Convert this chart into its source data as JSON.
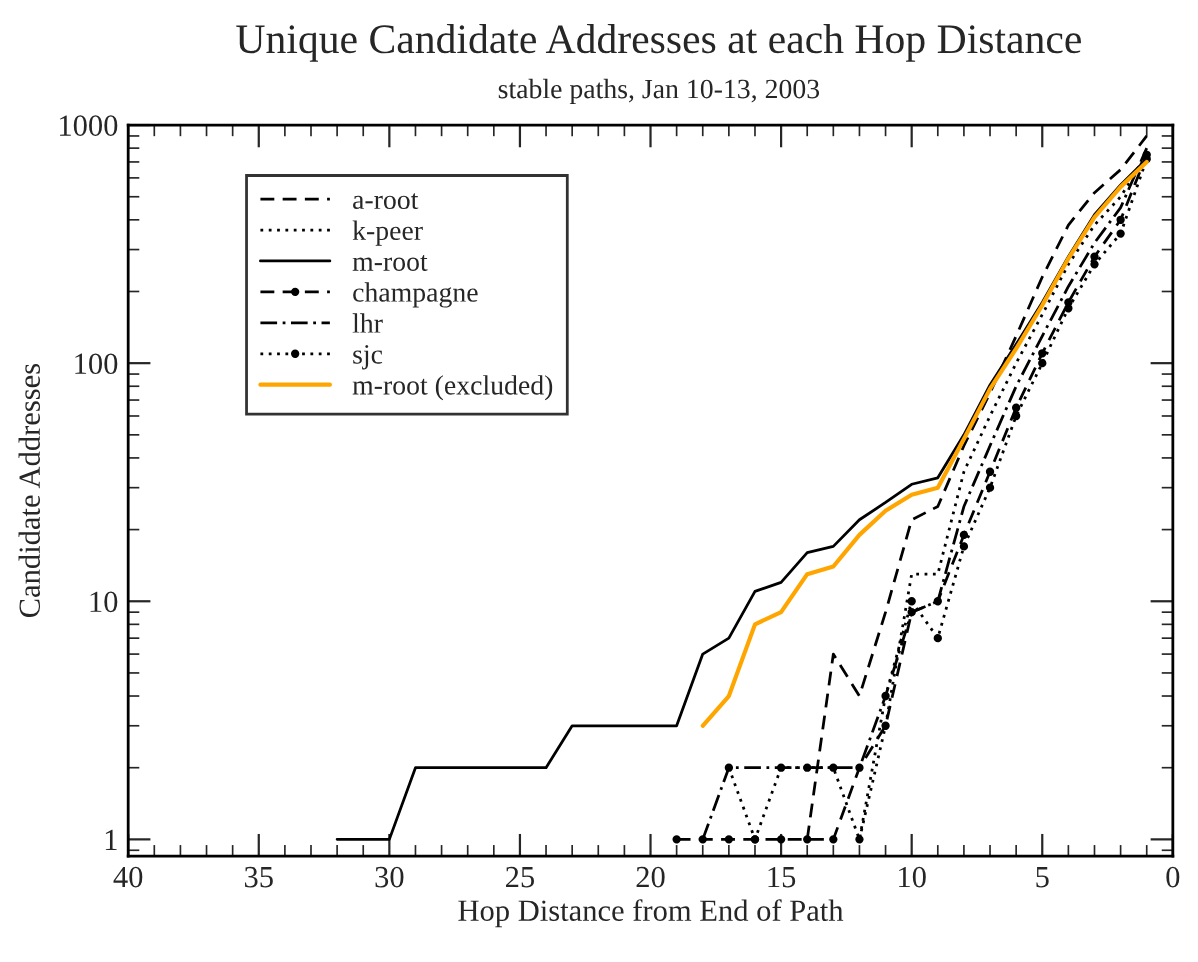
{
  "chart_data": {
    "type": "line",
    "title": "Unique Candidate Addresses at each Hop Distance",
    "subtitle": "stable paths, Jan 10-13, 2003",
    "xlabel": "Hop Distance from End of Path",
    "ylabel": "Candidate Addresses",
    "log": "y",
    "xlim": [
      40,
      0
    ],
    "xticks": [
      40,
      35,
      30,
      25,
      20,
      15,
      10,
      5,
      0
    ],
    "ylim": [
      0.85,
      1000
    ],
    "yticks": [
      1,
      10,
      100,
      1000
    ],
    "grid": false,
    "legend": "top left",
    "series": [
      {
        "name": "a-root",
        "color": "#000000",
        "line_style": "dashed",
        "marker": "none",
        "x": [
          14,
          13,
          12,
          11,
          10,
          9,
          8,
          7,
          6,
          5,
          4,
          3,
          2,
          1
        ],
        "values": [
          1,
          6,
          4,
          9,
          22,
          25,
          45,
          75,
          130,
          230,
          380,
          520,
          650,
          900
        ]
      },
      {
        "name": "k-peer",
        "color": "#000000",
        "line_style": "dotted",
        "marker": "none",
        "x": [
          12,
          11,
          10,
          9,
          8,
          7,
          6,
          5,
          4,
          3,
          2,
          1
        ],
        "values": [
          1,
          3,
          13,
          13,
          35,
          60,
          100,
          160,
          260,
          380,
          500,
          750
        ]
      },
      {
        "name": "m-root",
        "color": "#000000",
        "line_style": "solid",
        "marker": "none",
        "x": [
          32,
          30,
          29,
          24,
          23,
          19,
          18,
          17,
          16,
          15,
          14,
          13,
          12,
          11,
          10,
          9,
          8,
          7,
          6,
          5,
          4,
          3,
          2,
          1
        ],
        "values": [
          1,
          1,
          2,
          2,
          3,
          3,
          6,
          7,
          11,
          12,
          16,
          17,
          22,
          26,
          31,
          33,
          50,
          81,
          120,
          180,
          280,
          420,
          560,
          720
        ]
      },
      {
        "name": "champagne",
        "color": "#000000",
        "line_style": "dashed",
        "marker": "circle",
        "x": [
          19,
          18,
          17,
          16,
          15,
          14,
          13,
          12,
          11,
          10,
          9,
          8,
          7,
          6,
          5,
          4,
          3,
          2,
          1
        ],
        "values": [
          1,
          1,
          1,
          1,
          1,
          1,
          1,
          2,
          3,
          9,
          10,
          19,
          35,
          65,
          110,
          180,
          280,
          400,
          750
        ]
      },
      {
        "name": "lhr",
        "color": "#000000",
        "line_style": "dashdot",
        "marker": "none",
        "x": [
          18,
          17,
          16,
          15,
          14,
          13,
          12,
          11,
          10,
          9,
          8,
          7,
          6,
          5,
          4,
          3,
          2,
          1
        ],
        "values": [
          1,
          2,
          2,
          2,
          2,
          2,
          2,
          4,
          9,
          10,
          25,
          45,
          80,
          130,
          210,
          320,
          450,
          800
        ]
      },
      {
        "name": "sjc",
        "color": "#000000",
        "line_style": "dotted",
        "marker": "circle",
        "x": [
          17,
          16,
          15,
          14,
          13,
          12,
          11,
          10,
          9,
          8,
          7,
          6,
          5,
          4,
          3,
          2,
          1
        ],
        "values": [
          2,
          1,
          2,
          2,
          2,
          1,
          4,
          10,
          7,
          17,
          30,
          60,
          100,
          170,
          260,
          350,
          720
        ]
      },
      {
        "name": "m-root (excluded)",
        "color": "#ffa500",
        "line_style": "solid",
        "marker": "none",
        "x": [
          18,
          17,
          16,
          15,
          14,
          13,
          12,
          11,
          10,
          9,
          8,
          7,
          6,
          5,
          4,
          3,
          2,
          1
        ],
        "values": [
          3,
          4,
          8,
          9,
          13,
          14,
          19,
          24,
          28,
          30,
          48,
          78,
          115,
          175,
          275,
          410,
          550,
          700
        ]
      }
    ]
  }
}
